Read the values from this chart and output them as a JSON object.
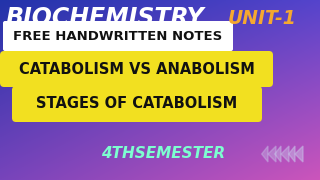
{
  "title_bio": "BIOCHEMISTRY",
  "title_bio_color": "#FFFFFF",
  "title_unit": "UNIT-1",
  "title_unit_color": "#F5A830",
  "free_notes_text": "FREE HANDWRITTEN NOTES",
  "free_notes_bg": "#FFFFFF",
  "free_notes_text_color": "#111111",
  "badge1_text": "CATABOLISM VS ANABOLISM",
  "badge1_bg": "#F2E020",
  "badge1_text_color": "#111111",
  "badge2_text": "STAGES OF CATABOLISM",
  "badge2_bg": "#F2E020",
  "badge2_text_color": "#111111",
  "semester_text": "4THSEMESTER",
  "semester_color": "#7DFFD0",
  "bg_top_left": "#2233AA",
  "bg_top_right": "#5544CC",
  "bg_bot_left": "#7744BB",
  "bg_bot_right": "#CC55BB",
  "arrow_color": "#C8C0E8"
}
